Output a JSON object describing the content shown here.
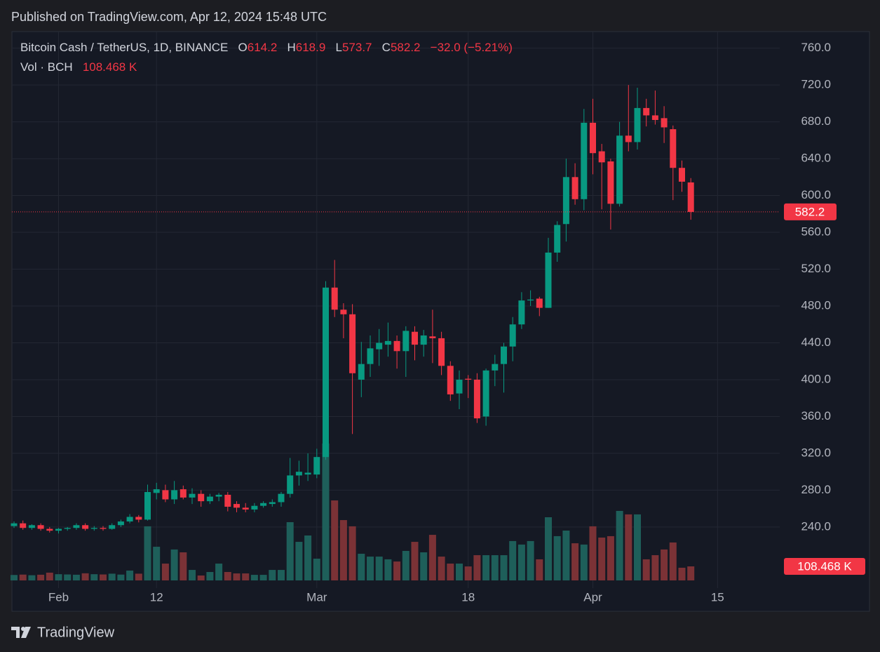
{
  "publisher_line": "Published on TradingView.com, Apr 12, 2024 15:48 UTC",
  "brand": "TradingView",
  "chart_data": {
    "type": "candlestick",
    "title": "Bitcoin Cash / TetherUS, 1D, BINANCE",
    "legend_letters": {
      "open": "O",
      "high": "H",
      "low": "L",
      "close": "C"
    },
    "change_label": "−32.0 (−5.21%)",
    "up_color": "#089981",
    "down_color": "#f23645",
    "x": [
      "2024-01-27",
      "2024-01-28",
      "2024-01-29",
      "2024-01-30",
      "2024-01-31",
      "2024-02-01",
      "2024-02-02",
      "2024-02-03",
      "2024-02-04",
      "2024-02-05",
      "2024-02-06",
      "2024-02-07",
      "2024-02-08",
      "2024-02-09",
      "2024-02-10",
      "2024-02-11",
      "2024-02-12",
      "2024-02-13",
      "2024-02-14",
      "2024-02-15",
      "2024-02-16",
      "2024-02-17",
      "2024-02-18",
      "2024-02-19",
      "2024-02-20",
      "2024-02-21",
      "2024-02-22",
      "2024-02-23",
      "2024-02-24",
      "2024-02-25",
      "2024-02-26",
      "2024-02-27",
      "2024-02-28",
      "2024-02-29",
      "2024-03-01",
      "2024-03-02",
      "2024-03-03",
      "2024-03-04",
      "2024-03-05",
      "2024-03-06",
      "2024-03-07",
      "2024-03-08",
      "2024-03-09",
      "2024-03-10",
      "2024-03-11",
      "2024-03-12",
      "2024-03-13",
      "2024-03-14",
      "2024-03-15",
      "2024-03-16",
      "2024-03-17",
      "2024-03-18",
      "2024-03-19",
      "2024-03-20",
      "2024-03-21",
      "2024-03-22",
      "2024-03-23",
      "2024-03-24",
      "2024-03-25",
      "2024-03-26",
      "2024-03-27",
      "2024-03-28",
      "2024-03-29",
      "2024-03-30",
      "2024-03-31",
      "2024-04-01",
      "2024-04-02",
      "2024-04-03",
      "2024-04-04",
      "2024-04-05",
      "2024-04-06",
      "2024-04-07",
      "2024-04-08",
      "2024-04-09",
      "2024-04-10",
      "2024-04-11",
      "2024-04-12"
    ],
    "open": [
      241,
      244,
      239,
      242,
      238,
      236,
      238,
      239,
      242,
      238,
      239,
      238,
      242,
      246,
      251,
      248,
      277,
      280,
      270,
      281,
      272,
      276,
      268,
      273,
      275,
      265,
      261,
      259,
      263,
      265,
      267,
      276,
      296,
      297,
      297,
      316,
      500,
      476,
      471,
      400,
      417,
      433,
      438,
      442,
      431,
      452,
      438,
      447,
      445,
      415,
      385,
      401,
      400,
      360,
      410,
      417,
      436,
      460,
      486,
      488,
      478,
      538,
      569,
      620,
      596,
      679,
      648,
      637,
      591,
      665,
      658,
      695,
      687,
      684,
      672,
      630,
      614.2
    ],
    "high": [
      246,
      247,
      243,
      244,
      240,
      239,
      240,
      244,
      244,
      241,
      241,
      244,
      248,
      254,
      253,
      286,
      288,
      286,
      290,
      285,
      282,
      280,
      276,
      277,
      278,
      268,
      266,
      266,
      268,
      270,
      278,
      315,
      312,
      320,
      325,
      507,
      530,
      483,
      482,
      441,
      448,
      455,
      462,
      448,
      458,
      458,
      454,
      476,
      452,
      420,
      410,
      405,
      407,
      412,
      427,
      440,
      468,
      495,
      497,
      490,
      554,
      572,
      640,
      635,
      694,
      705,
      656,
      640,
      680,
      720,
      717,
      705,
      714,
      697,
      676,
      638,
      618.9
    ],
    "low": [
      239,
      237,
      237,
      236,
      234,
      233,
      236,
      237,
      236,
      236,
      236,
      237,
      240,
      244,
      245,
      247,
      270,
      267,
      265,
      270,
      265,
      262,
      265,
      268,
      257,
      256,
      256,
      256,
      261,
      262,
      262,
      272,
      285,
      290,
      293,
      313,
      468,
      445,
      341,
      381,
      403,
      415,
      425,
      412,
      403,
      421,
      425,
      418,
      405,
      377,
      368,
      380,
      353,
      350,
      393,
      386,
      420,
      455,
      480,
      469,
      478,
      528,
      550,
      590,
      584,
      623,
      585,
      563,
      588,
      648,
      650,
      675,
      677,
      657,
      595,
      604,
      573.7
    ],
    "close": [
      244,
      239,
      242,
      238,
      236,
      238,
      239,
      242,
      238,
      239,
      238,
      242,
      246,
      251,
      248,
      278,
      281,
      270,
      280,
      272,
      276,
      268,
      273,
      275,
      262,
      261,
      259,
      263,
      266,
      267,
      276,
      296,
      300,
      299,
      316,
      500,
      476,
      471,
      407,
      417,
      434,
      440,
      442,
      431,
      453,
      438,
      448,
      445,
      415,
      384,
      400,
      400,
      358,
      410,
      417,
      436,
      460,
      486,
      487,
      478,
      538,
      568,
      620,
      596,
      679,
      646,
      636,
      591,
      665,
      658,
      695,
      687,
      682,
      674,
      630,
      615,
      582.2
    ],
    "volume": {
      "name": "Vol · BCH",
      "up_color": "#1e5f5a",
      "down_color": "#7b3236",
      "values": [
        42000,
        45000,
        40000,
        44000,
        60000,
        48000,
        46000,
        44000,
        55000,
        48000,
        46000,
        52000,
        45000,
        76000,
        52000,
        418000,
        260000,
        130000,
        239000,
        217000,
        81000,
        38000,
        65000,
        130000,
        65000,
        54000,
        54000,
        43000,
        43000,
        81000,
        81000,
        450000,
        298000,
        347000,
        168000,
        1058000,
        618000,
        466000,
        418000,
        206000,
        184000,
        184000,
        163000,
        146000,
        228000,
        298000,
        217000,
        352000,
        184000,
        130000,
        130000,
        108000,
        195000,
        195000,
        195000,
        195000,
        304000,
        277000,
        304000,
        163000,
        488000,
        342000,
        385000,
        287000,
        277000,
        418000,
        331000,
        342000,
        537000,
        510000,
        510000,
        163000,
        195000,
        239000,
        293000,
        98000,
        108468
      ],
      "last_value_label": "108.468 K",
      "ylim": [
        0,
        4240000
      ]
    },
    "xlim": [
      "2024-01-27",
      "2024-04-21"
    ],
    "xticks": [
      {
        "value": "2024-02-01",
        "label": "Feb"
      },
      {
        "value": "2024-02-12",
        "label": "12"
      },
      {
        "value": "2024-03-01",
        "label": "Mar"
      },
      {
        "value": "2024-03-18",
        "label": "18"
      },
      {
        "value": "2024-04-01",
        "label": "Apr"
      },
      {
        "value": "2024-04-15",
        "label": "15"
      }
    ],
    "ylim": [
      182,
      778
    ],
    "yticks": [
      {
        "value": 240,
        "label": "240.0"
      },
      {
        "value": 280,
        "label": "280.0"
      },
      {
        "value": 320,
        "label": "320.0"
      },
      {
        "value": 360,
        "label": "360.0"
      },
      {
        "value": 400,
        "label": "400.0"
      },
      {
        "value": 440,
        "label": "440.0"
      },
      {
        "value": 480,
        "label": "480.0"
      },
      {
        "value": 520,
        "label": "520.0"
      },
      {
        "value": 560,
        "label": "560.0"
      },
      {
        "value": 600,
        "label": "600.0"
      },
      {
        "value": 640,
        "label": "640.0"
      },
      {
        "value": 680,
        "label": "680.0"
      },
      {
        "value": 720,
        "label": "720.0"
      },
      {
        "value": 760,
        "label": "760.0"
      }
    ],
    "grid": true
  }
}
